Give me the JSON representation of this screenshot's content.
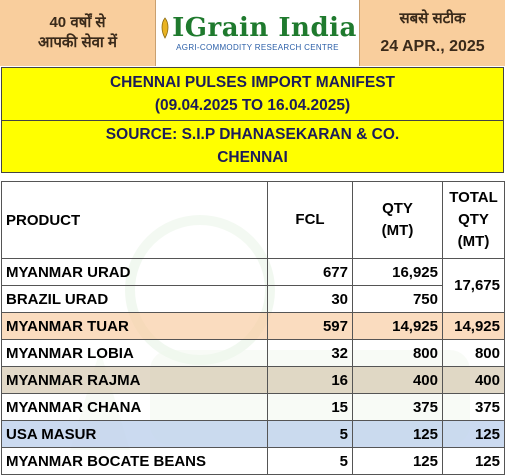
{
  "header": {
    "left_line1": "40 वर्षों से",
    "left_line2": "आपकी सेवा में",
    "logo_name": "IGrain India",
    "logo_tagline": "AGRI-COMMODITY RESEARCH CENTRE",
    "right_tagline": "सबसे सटीक",
    "date": "24 APR., 2025"
  },
  "title": {
    "line1": "CHENNAI PULSES IMPORT MANIFEST",
    "line2": "(09.04.2025 TO 16.04.2025)",
    "source_line1": "SOURCE: S.I.P DHANASEKARAN & CO.",
    "source_line2": "CHENNAI"
  },
  "table": {
    "headers": {
      "product": "PRODUCT",
      "fcl": "FCL",
      "qty_1": "QTY",
      "qty_2": "(MT)",
      "total_1": "TOTAL",
      "total_2": "QTY",
      "total_3": "(MT)"
    },
    "rows": [
      {
        "product": "MYANMAR URAD",
        "fcl": "677",
        "qty": "16,925"
      },
      {
        "product": "BRAZIL URAD",
        "fcl": "30",
        "qty": "750"
      },
      {
        "product": "MYANMAR TUAR",
        "fcl": "597",
        "qty": "14,925",
        "total": "14,925"
      },
      {
        "product": "MYANMAR LOBIA",
        "fcl": "32",
        "qty": "800",
        "total": "800"
      },
      {
        "product": "MYANMAR RAJMA",
        "fcl": "16",
        "qty": "400",
        "total": "400"
      },
      {
        "product": "MYANMAR CHANA",
        "fcl": "15",
        "qty": "375",
        "total": "375"
      },
      {
        "product": "USA MASUR",
        "fcl": "5",
        "qty": "125",
        "total": "125"
      },
      {
        "product": "MYANMAR BOCATE BEANS",
        "fcl": "5",
        "qty": "125",
        "total": "125"
      }
    ],
    "urad_total": "17,675"
  },
  "colors": {
    "header_peach": "#f9ce9d",
    "title_yellow": "#ffff00",
    "logo_green": "#1f7a2e",
    "row_peach": "#f9d6b4",
    "row_tan": "#ddd2be",
    "row_blue": "#c5d6ee"
  }
}
